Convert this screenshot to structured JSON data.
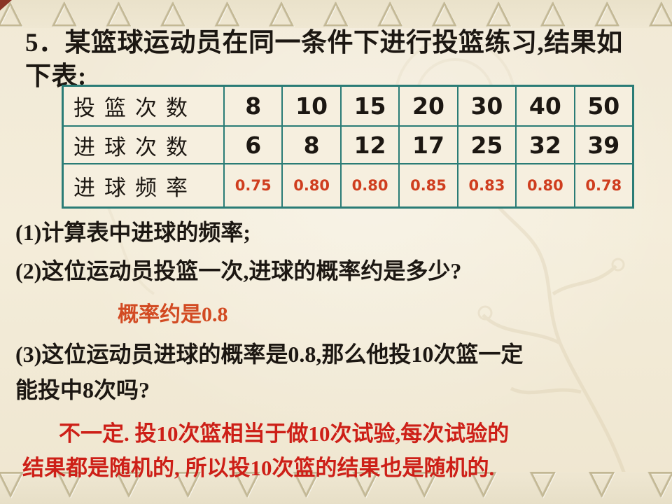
{
  "slide": {
    "title_lines": [
      "5．某篮球运动员在同一条件下进行投篮练习,结果如",
      "下表:"
    ],
    "q1": "(1)计算表中进球的频率;",
    "q2": "(2)这位运动员投篮一次,进球的概率约是多少?",
    "q2_answer": "概率约是0.8",
    "q3_lines": [
      "(3)这位运动员进球的概率是0.8,那么他投10次篮一定",
      "能投中8次吗?"
    ],
    "q3_answer_lines": [
      "不一定. 投10次篮相当于做10次试验,每次试验的",
      "结果都是随机的, 所以投10次篮的结果也是随机的."
    ]
  },
  "table": {
    "rows": [
      {
        "label": "投篮次数",
        "style": "num",
        "values": [
          "8",
          "10",
          "15",
          "20",
          "30",
          "40",
          "50"
        ]
      },
      {
        "label": "进球次数",
        "style": "num",
        "values": [
          "6",
          "8",
          "12",
          "17",
          "25",
          "32",
          "39"
        ]
      },
      {
        "label": "进球频率",
        "style": "freq",
        "values": [
          "0.75",
          "0.80",
          "0.80",
          "0.85",
          "0.83",
          "0.80",
          "0.78"
        ]
      }
    ]
  },
  "colors": {
    "background": "#f2ead8",
    "band_tan": "#c3b894",
    "table_border_teal": "#2a7c76",
    "frequency_red": "#cf3d1e",
    "answer_orange": "#d24a22",
    "answer_red": "#cd1f17",
    "text_black": "#1c1712"
  },
  "ornaments": {
    "top_glyph": "△",
    "bottom_glyph": "▽",
    "top_count": 13,
    "bottom_count": 12
  }
}
